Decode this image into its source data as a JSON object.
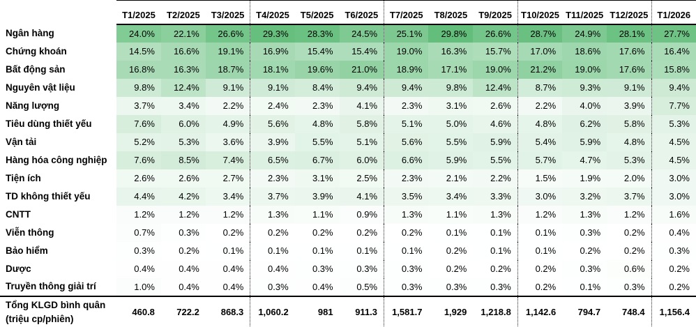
{
  "chart_data": {
    "type": "heatmap",
    "title": "",
    "unit": "%",
    "categories": [
      "T1/2025",
      "T2/2025",
      "T3/2025",
      "T4/2025",
      "T5/2025",
      "T6/2025",
      "T7/2025",
      "T8/2025",
      "T9/2025",
      "T10/2025",
      "T11/2025",
      "T12/2025",
      "T1/2026"
    ],
    "series": [
      {
        "name": "Ngân hàng",
        "values": [
          24.0,
          22.1,
          26.6,
          29.3,
          28.3,
          24.5,
          25.1,
          29.8,
          26.6,
          28.7,
          24.9,
          28.1,
          27.7
        ]
      },
      {
        "name": "Chứng khoán",
        "values": [
          14.5,
          16.6,
          19.1,
          16.9,
          15.4,
          15.4,
          19.0,
          16.3,
          15.7,
          17.0,
          18.6,
          17.6,
          16.4
        ]
      },
      {
        "name": "Bất động sản",
        "values": [
          16.8,
          16.3,
          18.7,
          18.1,
          19.6,
          21.0,
          18.9,
          17.1,
          19.0,
          21.2,
          19.0,
          17.6,
          15.8
        ]
      },
      {
        "name": "Nguyên vật liệu",
        "values": [
          9.8,
          12.4,
          9.1,
          9.1,
          8.4,
          9.4,
          9.4,
          9.8,
          12.4,
          8.7,
          9.3,
          9.1,
          9.4
        ]
      },
      {
        "name": "Năng lượng",
        "values": [
          3.7,
          3.4,
          2.2,
          2.4,
          2.3,
          4.1,
          2.3,
          3.1,
          2.6,
          2.2,
          4.0,
          3.9,
          7.7
        ]
      },
      {
        "name": "Tiêu dùng thiết yếu",
        "values": [
          7.6,
          6.0,
          4.9,
          5.6,
          4.8,
          5.8,
          5.1,
          5.0,
          4.6,
          4.8,
          6.2,
          5.8,
          5.3
        ]
      },
      {
        "name": "Vận tải",
        "values": [
          5.2,
          5.3,
          3.6,
          3.9,
          5.5,
          5.1,
          5.6,
          5.5,
          5.9,
          5.4,
          5.9,
          4.8,
          4.5
        ]
      },
      {
        "name": "Hàng hóa công nghiệp",
        "values": [
          7.6,
          8.5,
          7.4,
          6.5,
          6.7,
          6.0,
          6.6,
          5.9,
          5.5,
          5.7,
          4.7,
          5.3,
          4.5
        ]
      },
      {
        "name": "Tiện ích",
        "values": [
          2.6,
          2.6,
          2.7,
          2.3,
          3.1,
          2.5,
          2.3,
          2.1,
          2.2,
          1.5,
          1.9,
          2.0,
          3.0
        ]
      },
      {
        "name": "TD không thiết yếu",
        "values": [
          4.4,
          4.2,
          3.4,
          3.7,
          3.9,
          4.1,
          3.5,
          3.4,
          3.3,
          3.0,
          3.2,
          3.7,
          3.0
        ]
      },
      {
        "name": "CNTT",
        "values": [
          1.2,
          1.2,
          1.2,
          1.3,
          1.1,
          0.9,
          1.3,
          1.1,
          1.3,
          1.2,
          1.3,
          1.2,
          1.6
        ]
      },
      {
        "name": "Viễn thông",
        "values": [
          0.7,
          0.3,
          0.2,
          0.2,
          0.2,
          0.2,
          0.2,
          0.1,
          0.1,
          0.1,
          0.3,
          0.2,
          0.4
        ]
      },
      {
        "name": "Bảo hiểm",
        "values": [
          0.3,
          0.2,
          0.1,
          0.1,
          0.1,
          0.1,
          0.1,
          0.2,
          0.1,
          0.1,
          0.2,
          0.2,
          0.3
        ]
      },
      {
        "name": "Dược",
        "values": [
          0.4,
          0.4,
          0.4,
          0.4,
          0.3,
          0.3,
          0.3,
          0.2,
          0.2,
          0.2,
          0.3,
          0.6,
          0.2
        ]
      },
      {
        "name": "Truyền thông giải trí",
        "values": [
          1.0,
          0.4,
          0.4,
          0.3,
          0.4,
          0.5,
          0.3,
          0.3,
          0.3,
          0.2,
          0.1,
          0.3,
          0.2
        ]
      }
    ],
    "totals": {
      "name": "Tổng KLGD bình quân (triệu cp/phiên)",
      "values": [
        "460.8",
        "722.2",
        "868.3",
        "1,060.2",
        "981",
        "911.3",
        "1,581.7",
        "1,929",
        "1,218.8",
        "1,142.6",
        "794.7",
        "748.4",
        "1,156.4"
      ]
    },
    "color_scale": {
      "min_color": "#FFFFFF",
      "max_color": "#63BE7B",
      "domain": [
        0,
        29.8
      ]
    },
    "layout": {
      "legend": false,
      "grid": false,
      "quarter_break_after_columns": [
        2,
        5,
        8,
        11
      ]
    }
  },
  "table": {
    "corner_label": "",
    "total_row": {
      "label_line1": "Tổng KLGD bình quân",
      "label_line2": "(triệu cp/phiên)"
    }
  }
}
